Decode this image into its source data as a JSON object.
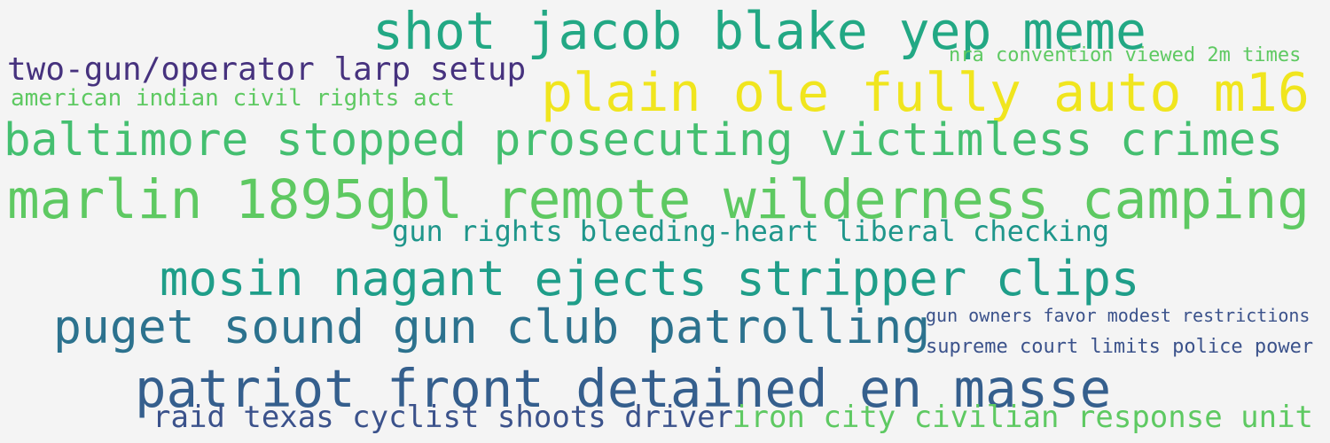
{
  "phrases": [
    {
      "text": "shot jacob blake yep meme",
      "color": "#22a884"
    },
    {
      "text": "two-gun/operator larp setup",
      "color": "#46327e"
    },
    {
      "text": "nra convention viewed 2m times",
      "color": "#5ec962"
    },
    {
      "text": "american indian civil rights act",
      "color": "#5ec962"
    },
    {
      "text": "plain ole fully auto m16",
      "color": "#f0e51e"
    },
    {
      "text": "baltimore stopped prosecuting victimless crimes",
      "color": "#44bf70"
    },
    {
      "text": "marlin 1895gbl remote wilderness camping",
      "color": "#5ec962"
    },
    {
      "text": "gun rights bleeding-heart liberal checking",
      "color": "#1f968b"
    },
    {
      "text": "mosin nagant ejects stripper clips",
      "color": "#1f9e89"
    },
    {
      "text": "puget sound gun club patrolling",
      "color": "#2c728e"
    },
    {
      "text": "gun owners favor modest restrictions",
      "color": "#3b528b"
    },
    {
      "text": "supreme court limits police power",
      "color": "#3b528b"
    },
    {
      "text": "patriot front detained en masse",
      "color": "#355f8d"
    },
    {
      "text": "raid texas cyclist shoots driver",
      "color": "#3b528b"
    },
    {
      "text": "iron city civilian response unit",
      "color": "#5ec962"
    }
  ]
}
